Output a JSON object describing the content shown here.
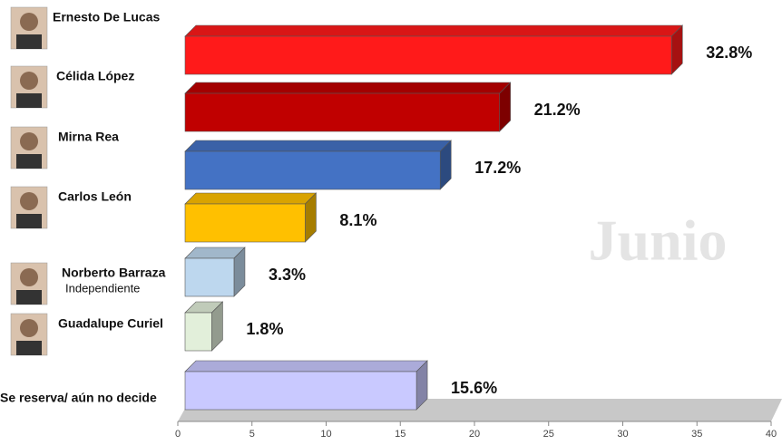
{
  "chart_data": {
    "type": "bar3d",
    "categories": [
      "Ernesto De Lucas",
      "Célida López",
      "Mirna Rea",
      "Carlos León",
      "Norberto Barraza",
      "Guadalupe Curiel",
      "Se reserva/ aún no decide"
    ],
    "values": [
      32.8,
      21.2,
      17.2,
      8.1,
      3.3,
      1.8,
      15.6
    ],
    "value_labels": [
      "32.8%",
      "21.2%",
      "17.2%",
      "8.1%",
      "3.3%",
      "1.8%",
      "15.6%"
    ],
    "colors": [
      "#ff1a1a",
      "#c00000",
      "#4472c4",
      "#ffc000",
      "#bdd7ee",
      "#e2efda",
      "#c9c9ff"
    ],
    "xlim": [
      0,
      40
    ],
    "xticks": [
      0,
      5,
      10,
      15,
      20,
      25,
      30,
      35,
      40
    ],
    "annotations": [
      "Independiente",
      "Junio"
    ]
  }
}
